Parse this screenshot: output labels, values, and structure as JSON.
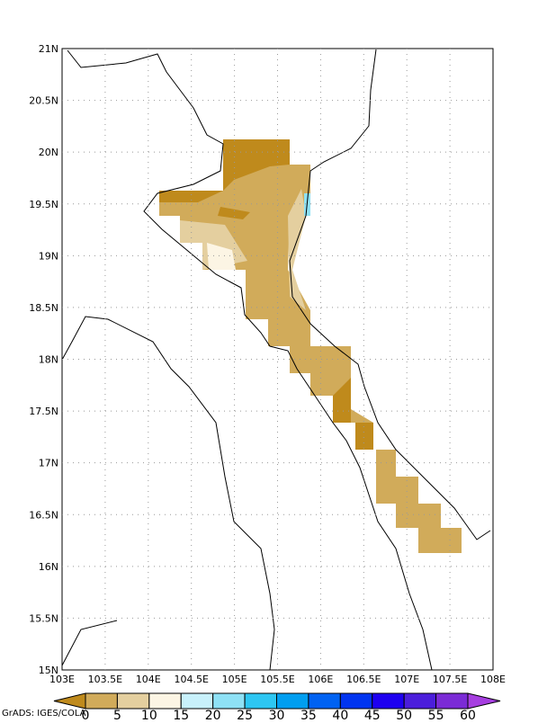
{
  "map": {
    "lat_labels": [
      "21N",
      "20.5N",
      "20N",
      "19.5N",
      "19N",
      "18.5N",
      "18N",
      "17.5N",
      "17N",
      "16.5N",
      "16N",
      "15.5N",
      "15N"
    ],
    "lon_labels": [
      "103E",
      "103.5E",
      "104E",
      "104.5E",
      "105E",
      "105.5E",
      "106E",
      "106.5E",
      "107E",
      "107.5E",
      "108E"
    ]
  },
  "colorbar": {
    "labels": [
      "0",
      "5",
      "10",
      "15",
      "20",
      "25",
      "30",
      "35",
      "40",
      "45",
      "50",
      "55",
      "60"
    ],
    "colors": [
      "#bf8a1c",
      "#d1ab5a",
      "#e4cf9f",
      "#fcf5e4",
      "#c8f1fb",
      "#8ee1f5",
      "#2dc6f2",
      "#009ef0",
      "#0062f2",
      "#0034f0",
      "#1e00f0",
      "#4b1edb",
      "#7b2bd6",
      "#a63ee0"
    ]
  },
  "credit": "GrADS: IGES/COLA"
}
